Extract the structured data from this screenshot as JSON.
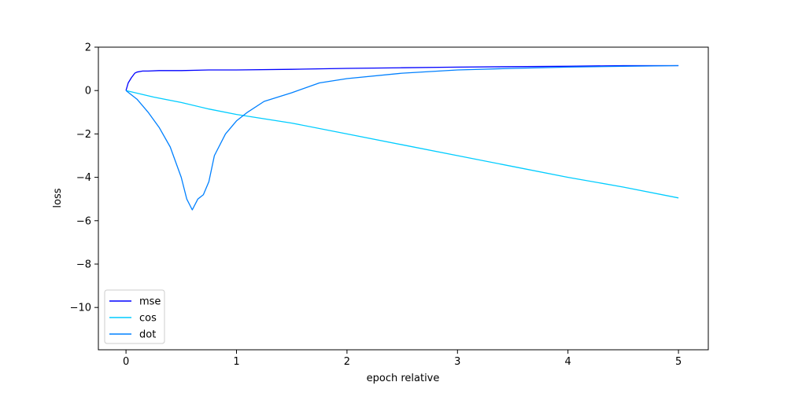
{
  "chart_data": {
    "type": "line",
    "title": "",
    "xlabel": "epoch relative",
    "ylabel": "loss",
    "xlim": [
      -0.25,
      5.27
    ],
    "ylim": [
      -11.95,
      2.0
    ],
    "xticks": [
      0,
      1,
      2,
      3,
      4,
      5
    ],
    "yticks": [
      2,
      0,
      -2,
      -4,
      -6,
      -8,
      -10
    ],
    "xtick_labels": [
      "0",
      "1",
      "2",
      "3",
      "4",
      "5"
    ],
    "ytick_labels": [
      "2",
      "0",
      "−2",
      "−4",
      "−6",
      "−8",
      "−10"
    ],
    "grid": false,
    "legend_position": "lower-left",
    "series": [
      {
        "name": "mse",
        "color": "#0000ff",
        "x": [
          0,
          0.02,
          0.05,
          0.08,
          0.1,
          0.15,
          0.2,
          0.3,
          0.5,
          0.75,
          1.0,
          1.5,
          2.0,
          2.5,
          3.0,
          3.5,
          4.0,
          4.5,
          5.0
        ],
        "y": [
          0,
          0.35,
          0.6,
          0.8,
          0.85,
          0.9,
          0.9,
          0.92,
          0.92,
          0.95,
          0.95,
          0.98,
          1.02,
          1.05,
          1.08,
          1.1,
          1.12,
          1.15,
          1.15
        ]
      },
      {
        "name": "cos",
        "color": "#00ccff",
        "x": [
          0,
          0.25,
          0.5,
          0.75,
          1.0,
          1.25,
          1.5,
          2.0,
          2.5,
          3.0,
          3.5,
          4.0,
          4.5,
          5.0
        ],
        "y": [
          0,
          -0.3,
          -0.55,
          -0.85,
          -1.1,
          -1.3,
          -1.5,
          -2.0,
          -2.5,
          -3.0,
          -3.5,
          -4.0,
          -4.45,
          -4.95
        ]
      },
      {
        "name": "dot",
        "color": "#0080ff",
        "x": [
          0,
          0.1,
          0.2,
          0.3,
          0.4,
          0.5,
          0.55,
          0.6,
          0.65,
          0.7,
          0.75,
          0.8,
          0.9,
          1.0,
          1.1,
          1.25,
          1.5,
          1.75,
          2.0,
          2.5,
          3.0,
          3.5,
          4.0,
          4.5,
          5.0
        ],
        "y": [
          0,
          -0.4,
          -1.0,
          -1.7,
          -2.6,
          -4.0,
          -5.0,
          -5.5,
          -5.0,
          -4.8,
          -4.2,
          -3.0,
          -2.0,
          -1.4,
          -1.0,
          -0.5,
          -0.1,
          0.35,
          0.55,
          0.8,
          0.95,
          1.02,
          1.08,
          1.12,
          1.15
        ]
      }
    ]
  }
}
